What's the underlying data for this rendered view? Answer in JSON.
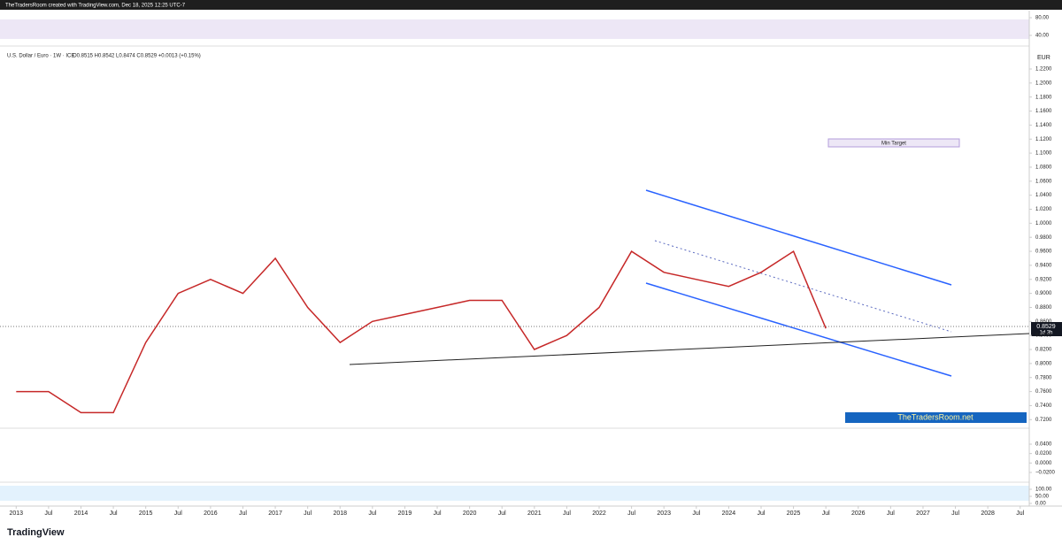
{
  "header": {
    "title": "TheTradersRoom created with TradingView.com, Dec 18, 2025 12:25 UTC-7"
  },
  "legend": {
    "symbol": "U.S. Dollar / Euro · 1W · ICE",
    "ohlc": "O0.8515  H0.8542  L0.8474  C0.8529  +0.0013 (+0.15%)"
  },
  "currency": "EUR",
  "last_price": {
    "value": "0.8529",
    "countdown": "1d 3h"
  },
  "annotations": {
    "min_target": "Min Target",
    "brand": "TheTradersRoom.net"
  },
  "footer": {
    "logo": "TradingView"
  },
  "time_axis": {
    "xlim": [
      2012.75,
      2028.64
    ],
    "xticks": [
      {
        "value": 2013,
        "label": "2013"
      },
      {
        "value": 2013.5,
        "label": "Jul"
      },
      {
        "value": 2014,
        "label": "2014"
      },
      {
        "value": 2014.5,
        "label": "Jul"
      },
      {
        "value": 2015,
        "label": "2015"
      },
      {
        "value": 2015.5,
        "label": "Jul"
      },
      {
        "value": 2016,
        "label": "2016"
      },
      {
        "value": 2016.5,
        "label": "Jul"
      },
      {
        "value": 2017,
        "label": "2017"
      },
      {
        "value": 2017.5,
        "label": "Jul"
      },
      {
        "value": 2018,
        "label": "2018"
      },
      {
        "value": 2018.5,
        "label": "Jul"
      },
      {
        "value": 2019,
        "label": "2019"
      },
      {
        "value": 2019.5,
        "label": "Jul"
      },
      {
        "value": 2020,
        "label": "2020"
      },
      {
        "value": 2020.5,
        "label": "Jul"
      },
      {
        "value": 2021,
        "label": "2021"
      },
      {
        "value": 2021.5,
        "label": "Jul"
      },
      {
        "value": 2022,
        "label": "2022"
      },
      {
        "value": 2022.5,
        "label": "Jul"
      },
      {
        "value": 2023,
        "label": "2023"
      },
      {
        "value": 2023.5,
        "label": "Jul"
      },
      {
        "value": 2024,
        "label": "2024"
      },
      {
        "value": 2024.5,
        "label": "Jul"
      },
      {
        "value": 2025,
        "label": "2025"
      },
      {
        "value": 2025.5,
        "label": "Jul"
      },
      {
        "value": 2026,
        "label": "2026"
      },
      {
        "value": 2026.5,
        "label": "Jul"
      },
      {
        "value": 2027,
        "label": "2027"
      },
      {
        "value": 2027.5,
        "label": "Jul"
      },
      {
        "value": 2028,
        "label": "2028"
      },
      {
        "value": 2028.5,
        "label": "Jul"
      }
    ]
  },
  "chart_data": [
    {
      "type": "line",
      "ylim": [
        20,
        96
      ],
      "yticks": [
        {
          "value": 80,
          "label": "80.00"
        },
        {
          "value": 40,
          "label": "40.00"
        }
      ]
    },
    {
      "type": "line",
      "ylim": [
        0.709,
        1.249
      ],
      "yticks": [
        {
          "value": 0.72,
          "label": "0.7200"
        },
        {
          "value": 0.74,
          "label": "0.7400"
        },
        {
          "value": 0.76,
          "label": "0.7600"
        },
        {
          "value": 0.78,
          "label": "0.7800"
        },
        {
          "value": 0.8,
          "label": "0.8000"
        },
        {
          "value": 0.82,
          "label": "0.8200"
        },
        {
          "value": 0.84,
          "label": "0.8400"
        },
        {
          "value": 0.86,
          "label": "0.8600"
        },
        {
          "value": 0.88,
          "label": "0.8800"
        },
        {
          "value": 0.9,
          "label": "0.9000"
        },
        {
          "value": 0.92,
          "label": "0.9200"
        },
        {
          "value": 0.94,
          "label": "0.9400"
        },
        {
          "value": 0.96,
          "label": "0.9600"
        },
        {
          "value": 0.98,
          "label": "0.9800"
        },
        {
          "value": 1.0,
          "label": "1.0000"
        },
        {
          "value": 1.02,
          "label": "1.0200"
        },
        {
          "value": 1.04,
          "label": "1.0400"
        },
        {
          "value": 1.06,
          "label": "1.0600"
        },
        {
          "value": 1.08,
          "label": "1.0800"
        },
        {
          "value": 1.1,
          "label": "1.1000"
        },
        {
          "value": 1.12,
          "label": "1.1200"
        },
        {
          "value": 1.14,
          "label": "1.1400"
        },
        {
          "value": 1.16,
          "label": "1.1600"
        },
        {
          "value": 1.18,
          "label": "1.1800"
        },
        {
          "value": 1.2,
          "label": "1.2000"
        },
        {
          "value": 1.22,
          "label": "1.2200"
        }
      ],
      "x": [
        2013,
        2013.5,
        2014,
        2014.5,
        2015,
        2015.5,
        2016,
        2016.5,
        2017,
        2017.5,
        2018,
        2018.5,
        2019,
        2019.5,
        2020,
        2020.5,
        2021,
        2021.5,
        2022,
        2022.5,
        2023,
        2023.5,
        2024,
        2024.5,
        2025,
        2025.5
      ],
      "series": [
        {
          "color": "#c62828",
          "values": [
            0.76,
            0.76,
            0.73,
            0.73,
            0.83,
            0.9,
            0.92,
            0.9,
            0.95,
            0.88,
            0.83,
            0.86,
            0.87,
            0.88,
            0.89,
            0.89,
            0.82,
            0.84,
            0.88,
            0.96,
            0.93,
            0.92,
            0.91,
            0.93,
            0.96,
            0.85
          ]
        }
      ]
    },
    {
      "type": "line",
      "ylim": [
        -0.0369,
        0.0681
      ],
      "yticks": [
        {
          "value": 0.04,
          "label": "0.0400"
        },
        {
          "value": 0.02,
          "label": "0.0200"
        },
        {
          "value": 0,
          "label": "0.0000"
        },
        {
          "value": -0.02,
          "label": "−0.0200"
        }
      ]
    },
    {
      "type": "line",
      "ylim": [
        -18.75,
        137.5
      ],
      "yticks": [
        {
          "value": 100,
          "label": "100.00"
        },
        {
          "value": 50,
          "label": "50.00"
        },
        {
          "value": 0,
          "label": "0.00"
        }
      ]
    }
  ]
}
